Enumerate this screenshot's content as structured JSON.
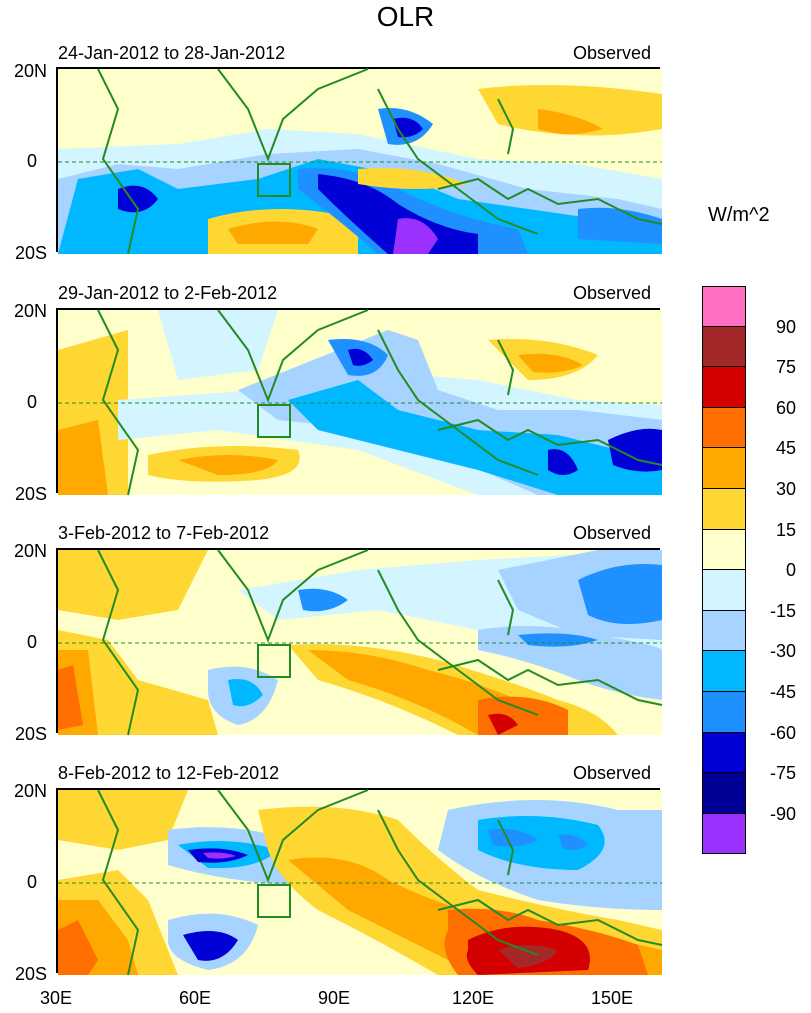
{
  "title": "OLR",
  "units": "W/m^2",
  "panels": [
    {
      "date_range": "24-Jan-2012 to 28-Jan-2012",
      "label": "Observed"
    },
    {
      "date_range": "29-Jan-2012 to 2-Feb-2012",
      "label": "Observed"
    },
    {
      "date_range": "3-Feb-2012 to 7-Feb-2012",
      "label": "Observed"
    },
    {
      "date_range": "8-Feb-2012 to 12-Feb-2012",
      "label": "Observed"
    }
  ],
  "lat_labels": [
    "20N",
    "0",
    "20S"
  ],
  "lon_labels": [
    "30E",
    "60E",
    "90E",
    "120E",
    "150E"
  ],
  "colorbar": {
    "levels": [
      "90",
      "75",
      "60",
      "45",
      "30",
      "15",
      "0",
      "-15",
      "-30",
      "-45",
      "-60",
      "-75",
      "-90"
    ],
    "colors": [
      "#ff6fc4",
      "#a32828",
      "#d40000",
      "#ff6e00",
      "#ffa800",
      "#ffd732",
      "#ffffcc",
      "#d2f5ff",
      "#a6d3ff",
      "#00b8ff",
      "#1e90ff",
      "#0000d7",
      "#000096",
      "#9b30ff"
    ]
  }
}
